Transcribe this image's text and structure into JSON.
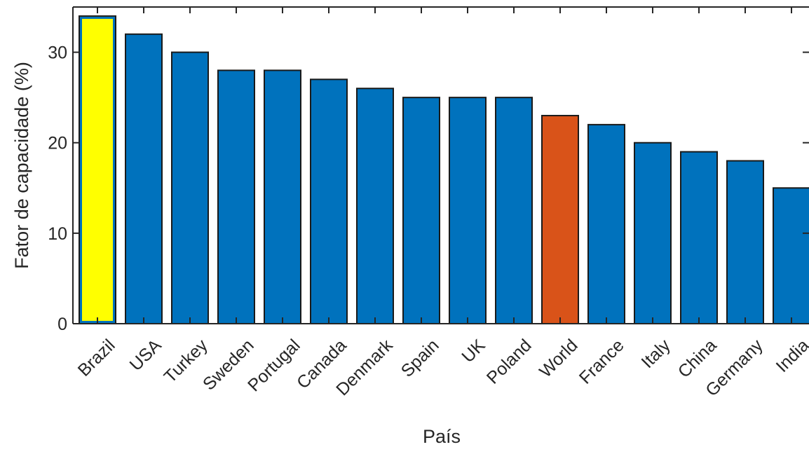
{
  "chart_data": {
    "type": "bar",
    "categories": [
      "Brazil",
      "USA",
      "Turkey",
      "Sweden",
      "Portugal",
      "Canada",
      "Denmark",
      "Spain",
      "UK",
      "Poland",
      "World",
      "France",
      "Italy",
      "China",
      "Germany",
      "India"
    ],
    "values": [
      34,
      32,
      30,
      28,
      28,
      27,
      26,
      25,
      25,
      25,
      23,
      22,
      20,
      19,
      18,
      15
    ],
    "bar_colors": [
      "#ffff00",
      "#0072bd",
      "#0072bd",
      "#0072bd",
      "#0072bd",
      "#0072bd",
      "#0072bd",
      "#0072bd",
      "#0072bd",
      "#0072bd",
      "#d95319",
      "#0072bd",
      "#0072bd",
      "#0072bd",
      "#0072bd",
      "#0072bd"
    ],
    "highlight_outline": "#0072bd",
    "edge_color": "#1a1a1a",
    "xlabel": "País",
    "ylabel": "Fator de capacidade (%)",
    "ylim": [
      0,
      35
    ],
    "yticks": [
      0,
      10,
      20,
      30
    ],
    "grid": false,
    "legend": "none"
  }
}
